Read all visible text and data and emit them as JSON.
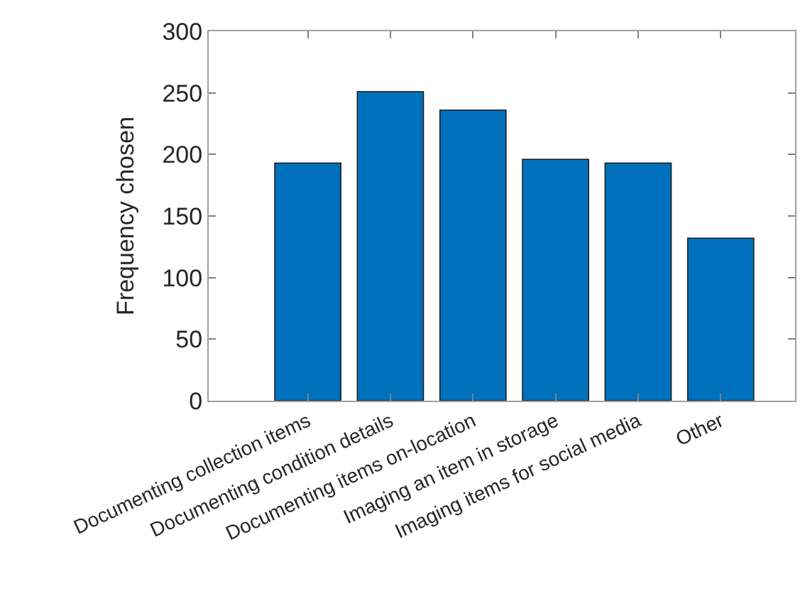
{
  "chart_data": {
    "type": "bar",
    "ylabel": "Frequency chosen",
    "categories": [
      "Documenting collection items",
      "Documenting condition details",
      "Documenting items on-location",
      "Imaging an item in storage",
      "Imaging items for social media",
      "Other"
    ],
    "values": [
      193,
      251,
      236,
      196,
      193,
      132
    ],
    "color": "#0072bd",
    "ylim": [
      0,
      300
    ],
    "yticks": [
      0,
      50,
      100,
      150,
      200,
      250,
      300
    ],
    "legend": false
  }
}
